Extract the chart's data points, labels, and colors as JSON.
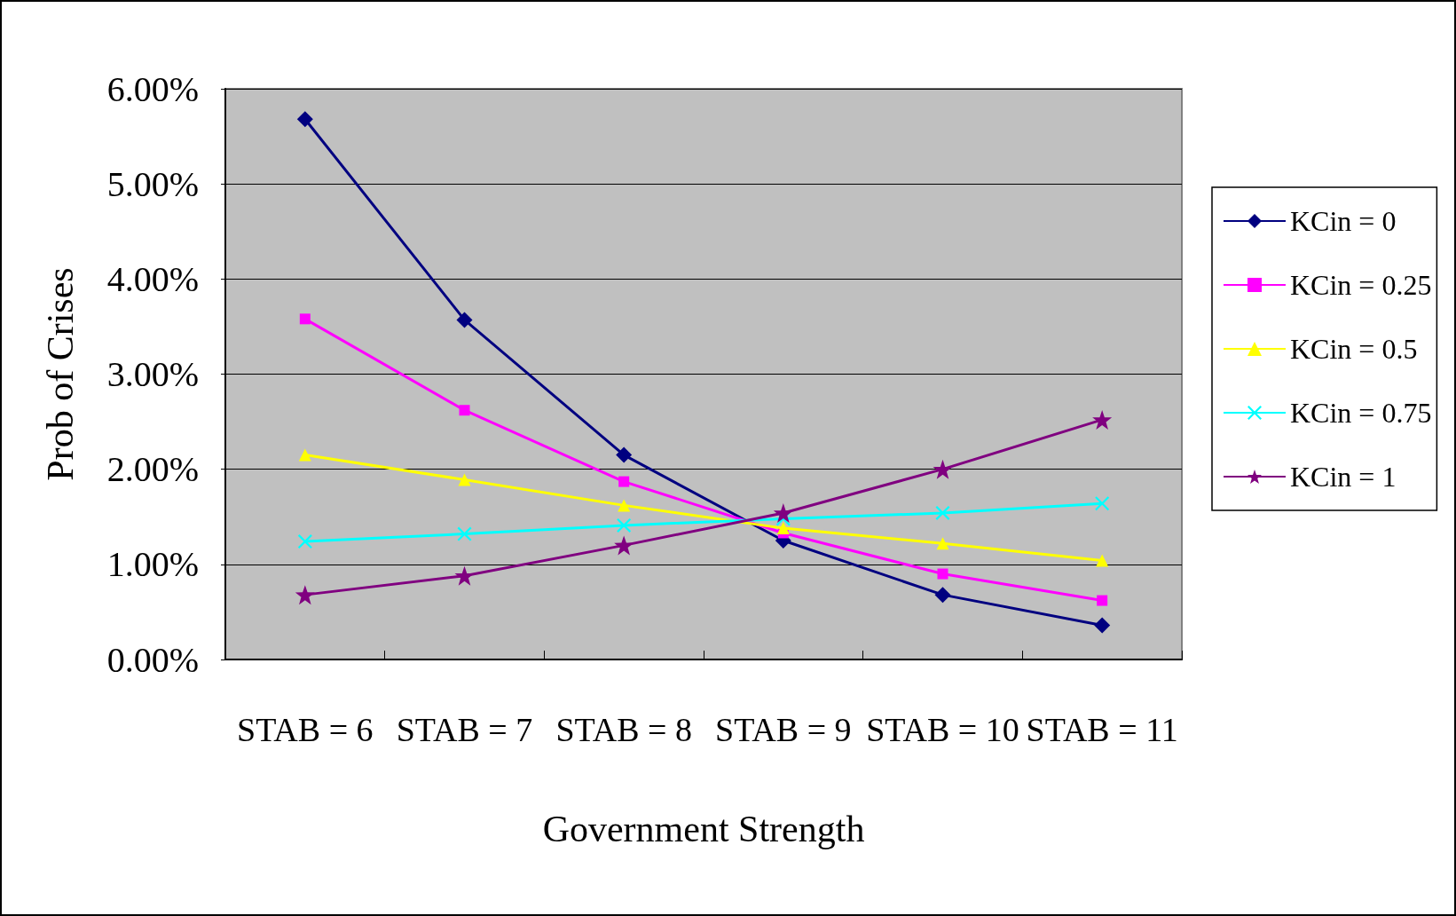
{
  "chart_data": {
    "type": "line",
    "xlabel": "Government Strength",
    "ylabel": "Prob of Crises",
    "categories": [
      "STAB = 6",
      "STAB = 7",
      "STAB = 8",
      "STAB = 9",
      "STAB = 10",
      "STAB = 11"
    ],
    "series": [
      {
        "name": "KCin = 0",
        "color": "#000080",
        "marker": "diamond",
        "values": [
          5.68,
          3.57,
          2.15,
          1.25,
          0.68,
          0.36
        ]
      },
      {
        "name": "KCin = 0.25",
        "color": "#ff00ff",
        "marker": "square",
        "values": [
          3.58,
          2.62,
          1.87,
          1.33,
          0.9,
          0.62
        ]
      },
      {
        "name": "KCin = 0.5",
        "color": "#ffff00",
        "marker": "triangle",
        "values": [
          2.15,
          1.89,
          1.62,
          1.38,
          1.22,
          1.04
        ]
      },
      {
        "name": "KCin = 0.75",
        "color": "#00ffff",
        "marker": "cross",
        "values": [
          1.24,
          1.32,
          1.41,
          1.48,
          1.54,
          1.64
        ]
      },
      {
        "name": "KCin = 1",
        "color": "#800080",
        "marker": "star",
        "values": [
          0.68,
          0.88,
          1.2,
          1.54,
          2.0,
          2.52
        ]
      }
    ],
    "ylim": [
      0,
      6
    ],
    "yticks": [
      {
        "value": 0,
        "label": "0.00%"
      },
      {
        "value": 1,
        "label": "1.00%"
      },
      {
        "value": 2,
        "label": "2.00%"
      },
      {
        "value": 3,
        "label": "3.00%"
      },
      {
        "value": 4,
        "label": "4.00%"
      },
      {
        "value": 5,
        "label": "5.00%"
      },
      {
        "value": 6,
        "label": "6.00%"
      }
    ],
    "grid": "y",
    "legend": "right",
    "line_style": "solid"
  }
}
